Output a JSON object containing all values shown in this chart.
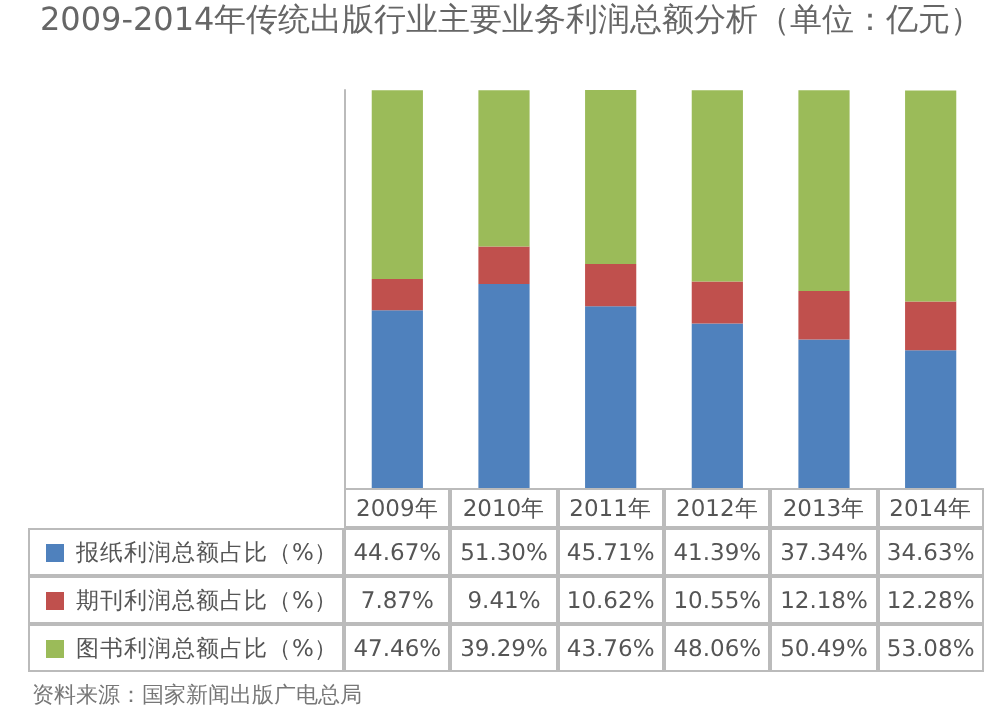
{
  "chart_data": {
    "type": "bar",
    "title": "2009-2014年传统出版行业主要业务利润总额分析（单位：亿元）",
    "categories": [
      "2009年",
      "2010年",
      "2011年",
      "2012年",
      "2013年",
      "2014年"
    ],
    "stacked": true,
    "legend": "bottom",
    "grid": false,
    "series": [
      {
        "name": "报纸利润总额占比（%）",
        "color": "#4f81bd",
        "values": [
          44.67,
          51.3,
          45.71,
          41.39,
          37.34,
          34.63
        ],
        "value_labels": [
          "44.67%",
          "51.30%",
          "45.71%",
          "41.39%",
          "37.34%",
          "34.63%"
        ]
      },
      {
        "name": "期刊利润总额占比（%）",
        "color": "#c0504d",
        "values": [
          7.87,
          9.41,
          10.62,
          10.55,
          12.18,
          12.28
        ],
        "value_labels": [
          "7.87%",
          "9.41%",
          "10.62%",
          "10.55%",
          "12.18%",
          "12.28%"
        ]
      },
      {
        "name": "图书利润总额占比（%）",
        "color": "#9bbb59",
        "values": [
          47.46,
          39.29,
          43.76,
          48.06,
          50.49,
          53.08
        ],
        "value_labels": [
          "47.46%",
          "39.29%",
          "43.76%",
          "48.06%",
          "50.49%",
          "53.08%"
        ]
      }
    ],
    "annotations": [
      "资料来源：国家新闻出版广电总局"
    ]
  }
}
